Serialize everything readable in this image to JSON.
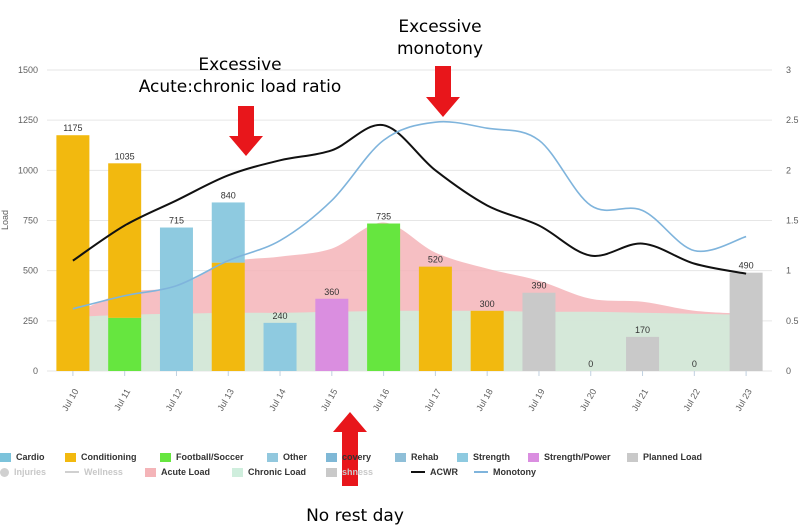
{
  "annotations": {
    "acwr": [
      "Excessive",
      "Acute:chronic load ratio"
    ],
    "monotony": [
      "Excessive",
      "monotony"
    ],
    "rest": "No rest day"
  },
  "chart_data": {
    "type": "bar",
    "categories": [
      "Jul 10",
      "Jul 11",
      "Jul 12",
      "Jul 13",
      "Jul 14",
      "Jul 15",
      "Jul 16",
      "Jul 17",
      "Jul 18",
      "Jul 19",
      "Jul 20",
      "Jul 21",
      "Jul 22",
      "Jul 23"
    ],
    "ylabel": "Load",
    "ylim": [
      0,
      1500
    ],
    "yticks": [
      0,
      250,
      500,
      750,
      1000,
      1250,
      1500
    ],
    "y2lim": [
      0,
      3
    ],
    "y2ticks": [
      "0",
      "0.5",
      "1",
      "1.5",
      "2",
      "2.5",
      "3"
    ],
    "grid": true,
    "legend_position": "bottom",
    "bars": [
      {
        "category": "Jul 10",
        "label": "1175",
        "segments": [
          {
            "type": "Conditioning",
            "value": 1175
          }
        ]
      },
      {
        "category": "Jul 11",
        "label": "1035",
        "segments": [
          {
            "type": "Football/Soccer",
            "value": 265
          },
          {
            "type": "Conditioning",
            "value": 770
          }
        ]
      },
      {
        "category": "Jul 12",
        "label": "715",
        "segments": [
          {
            "type": "Strength",
            "value": 715
          }
        ]
      },
      {
        "category": "Jul 13",
        "label": "840",
        "segments": [
          {
            "type": "Conditioning",
            "value": 540
          },
          {
            "type": "Strength",
            "value": 300
          }
        ]
      },
      {
        "category": "Jul 14",
        "label": "240",
        "segments": [
          {
            "type": "Strength",
            "value": 240
          }
        ]
      },
      {
        "category": "Jul 15",
        "label": "360",
        "segments": [
          {
            "type": "Strength/Power",
            "value": 360
          }
        ]
      },
      {
        "category": "Jul 16",
        "label": "735",
        "segments": [
          {
            "type": "Football/Soccer",
            "value": 735
          }
        ]
      },
      {
        "category": "Jul 17",
        "label": "520",
        "segments": [
          {
            "type": "Conditioning",
            "value": 520
          }
        ]
      },
      {
        "category": "Jul 18",
        "label": "300",
        "segments": [
          {
            "type": "Conditioning",
            "value": 300
          }
        ]
      },
      {
        "category": "Jul 19",
        "label": "390",
        "segments": [
          {
            "type": "Planned Load",
            "value": 390
          }
        ]
      },
      {
        "category": "Jul 20",
        "label": "0",
        "segments": []
      },
      {
        "category": "Jul 21",
        "label": "170",
        "segments": [
          {
            "type": "Planned Load",
            "value": 170
          }
        ]
      },
      {
        "category": "Jul 22",
        "label": "0",
        "segments": []
      },
      {
        "category": "Jul 23",
        "label": "490",
        "segments": [
          {
            "type": "Planned Load",
            "value": 490
          }
        ]
      }
    ],
    "areas": [
      {
        "name": "Acute Load",
        "color": "#f4b4b8",
        "x": [
          0,
          1,
          2,
          3,
          4,
          5,
          6,
          7,
          8,
          9,
          10,
          11,
          12,
          13
        ],
        "values": [
          285,
          390,
          420,
          540,
          570,
          610,
          740,
          590,
          510,
          450,
          360,
          345,
          300,
          285
        ]
      },
      {
        "name": "Chronic Load",
        "color": "#cfeedd",
        "x": [
          0,
          1,
          2,
          3,
          4,
          5,
          6,
          7,
          8,
          9,
          10,
          11,
          12,
          13
        ],
        "values": [
          270,
          280,
          285,
          290,
          290,
          295,
          300,
          300,
          300,
          295,
          295,
          290,
          285,
          280
        ]
      }
    ],
    "lines": [
      {
        "name": "ACWR",
        "color": "#111111",
        "axis": "right",
        "x": [
          0,
          1,
          2,
          3,
          4,
          5,
          6,
          7,
          8,
          9,
          10,
          11,
          12,
          13
        ],
        "values": [
          1.1,
          1.45,
          1.7,
          1.95,
          2.1,
          2.2,
          2.45,
          2.0,
          1.65,
          1.45,
          1.15,
          1.27,
          1.07,
          0.97
        ]
      },
      {
        "name": "Monotony",
        "color": "#7fb4dc",
        "axis": "right",
        "x": [
          0,
          1,
          2,
          3,
          4,
          5,
          6,
          7,
          8,
          9,
          10,
          11,
          12,
          13
        ],
        "values": [
          0.62,
          0.75,
          0.85,
          1.1,
          1.3,
          1.7,
          2.3,
          2.48,
          2.42,
          2.3,
          1.65,
          1.6,
          1.2,
          1.34
        ]
      }
    ]
  },
  "colors": {
    "Cardio": "#7cc3db",
    "Conditioning": "#f2b90f",
    "Football/Soccer": "#66e63f",
    "Other": "#92c8de",
    "Recovery": "#7fb8d6",
    "Rehab": "#8fbfd8",
    "Strength": "#8ecae0",
    "Strength/Power": "#da8ee0",
    "Planned Load": "#c9c9c9",
    "grid": "#e6e6e6",
    "arrow": "#e8161b"
  },
  "legend": {
    "row1": [
      {
        "label": "Cardio",
        "kind": "box",
        "color": "#7cc3db"
      },
      {
        "label": "Conditioning",
        "kind": "box",
        "color": "#f2b90f"
      },
      {
        "label": "Football/Soccer",
        "kind": "box",
        "color": "#66e63f"
      },
      {
        "label": "Other",
        "kind": "box",
        "color": "#92c8de"
      },
      {
        "label": "covery",
        "kind": "box",
        "color": "#7fb8d6"
      },
      {
        "label": "Rehab",
        "kind": "box",
        "color": "#8fbfd8"
      },
      {
        "label": "Strength",
        "kind": "box",
        "color": "#8ecae0"
      },
      {
        "label": "Strength/Power",
        "kind": "box",
        "color": "#da8ee0"
      },
      {
        "label": "Planned Load",
        "kind": "box",
        "color": "#c9c9c9"
      }
    ],
    "row2": [
      {
        "label": "Injuries",
        "kind": "dot",
        "color": "#d0d0d0",
        "hidden": true
      },
      {
        "label": "Wellness",
        "kind": "line",
        "color": "#d0d0d0",
        "hidden": true
      },
      {
        "label": "Acute Load",
        "kind": "box",
        "color": "#f4b4b8"
      },
      {
        "label": "Chronic Load",
        "kind": "box",
        "color": "#cfeedd"
      },
      {
        "label": "shness",
        "kind": "box",
        "color": "#c9c9c9",
        "hidden": true
      },
      {
        "label": "ACWR",
        "kind": "line",
        "color": "#111111"
      },
      {
        "label": "Monotony",
        "kind": "line",
        "color": "#7fb4dc"
      }
    ]
  }
}
